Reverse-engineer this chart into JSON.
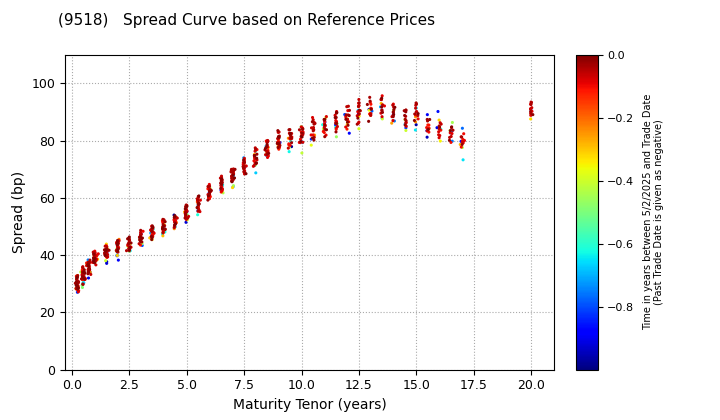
{
  "title": "(9518)   Spread Curve based on Reference Prices",
  "xlabel": "Maturity Tenor (years)",
  "ylabel": "Spread (bp)",
  "colorbar_label_line1": "Time in years between 5/2/2025 and Trade Date",
  "colorbar_label_line2": "(Past Trade Date is given as negative)",
  "cbar_ticks": [
    0.0,
    -0.2,
    -0.4,
    -0.6,
    -0.8
  ],
  "cmap": "jet_r",
  "vmin": -1.0,
  "vmax": 0.0,
  "xlim": [
    -0.3,
    21.0
  ],
  "ylim": [
    0,
    110
  ],
  "xticks": [
    0.0,
    2.5,
    5.0,
    7.5,
    10.0,
    12.5,
    15.0,
    17.5,
    20.0
  ],
  "yticks": [
    0,
    20,
    40,
    60,
    80,
    100
  ],
  "background_color": "#ffffff",
  "grid_color": "#aaaaaa",
  "grid_style": "dotted",
  "marker_size": 5,
  "marker": "o",
  "bond_clusters": [
    {
      "tenor": 0.25,
      "spread": 30,
      "n_recent": 30,
      "n_old": 8,
      "spread_range_recent": 5,
      "spread_range_old": 4
    },
    {
      "tenor": 0.5,
      "spread": 33,
      "n_recent": 30,
      "n_old": 8,
      "spread_range_recent": 5,
      "spread_range_old": 4
    },
    {
      "tenor": 0.75,
      "spread": 36,
      "n_recent": 28,
      "n_old": 8,
      "spread_range_recent": 4,
      "spread_range_old": 4
    },
    {
      "tenor": 1.0,
      "spread": 39,
      "n_recent": 28,
      "n_old": 8,
      "spread_range_recent": 4,
      "spread_range_old": 4
    },
    {
      "tenor": 1.5,
      "spread": 41,
      "n_recent": 25,
      "n_old": 8,
      "spread_range_recent": 4,
      "spread_range_old": 4
    },
    {
      "tenor": 2.0,
      "spread": 43,
      "n_recent": 25,
      "n_old": 8,
      "spread_range_recent": 4,
      "spread_range_old": 4
    },
    {
      "tenor": 2.5,
      "spread": 44,
      "n_recent": 22,
      "n_old": 6,
      "spread_range_recent": 4,
      "spread_range_old": 3
    },
    {
      "tenor": 3.0,
      "spread": 46,
      "n_recent": 22,
      "n_old": 6,
      "spread_range_recent": 4,
      "spread_range_old": 3
    },
    {
      "tenor": 3.5,
      "spread": 48,
      "n_recent": 20,
      "n_old": 6,
      "spread_range_recent": 4,
      "spread_range_old": 3
    },
    {
      "tenor": 4.0,
      "spread": 50,
      "n_recent": 20,
      "n_old": 5,
      "spread_range_recent": 4,
      "spread_range_old": 3
    },
    {
      "tenor": 4.5,
      "spread": 52,
      "n_recent": 20,
      "n_old": 5,
      "spread_range_recent": 4,
      "spread_range_old": 3
    },
    {
      "tenor": 5.0,
      "spread": 55,
      "n_recent": 22,
      "n_old": 6,
      "spread_range_recent": 5,
      "spread_range_old": 4
    },
    {
      "tenor": 5.5,
      "spread": 58,
      "n_recent": 20,
      "n_old": 5,
      "spread_range_recent": 5,
      "spread_range_old": 4
    },
    {
      "tenor": 6.0,
      "spread": 62,
      "n_recent": 20,
      "n_old": 5,
      "spread_range_recent": 5,
      "spread_range_old": 4
    },
    {
      "tenor": 6.5,
      "spread": 65,
      "n_recent": 20,
      "n_old": 5,
      "spread_range_recent": 5,
      "spread_range_old": 4
    },
    {
      "tenor": 7.0,
      "spread": 68,
      "n_recent": 22,
      "n_old": 5,
      "spread_range_recent": 5,
      "spread_range_old": 4
    },
    {
      "tenor": 7.5,
      "spread": 71,
      "n_recent": 22,
      "n_old": 5,
      "spread_range_recent": 5,
      "spread_range_old": 4
    },
    {
      "tenor": 8.0,
      "spread": 74,
      "n_recent": 22,
      "n_old": 5,
      "spread_range_recent": 6,
      "spread_range_old": 4
    },
    {
      "tenor": 8.5,
      "spread": 77,
      "n_recent": 20,
      "n_old": 5,
      "spread_range_recent": 6,
      "spread_range_old": 4
    },
    {
      "tenor": 9.0,
      "spread": 80,
      "n_recent": 20,
      "n_old": 5,
      "spread_range_recent": 6,
      "spread_range_old": 5
    },
    {
      "tenor": 9.5,
      "spread": 81,
      "n_recent": 18,
      "n_old": 5,
      "spread_range_recent": 6,
      "spread_range_old": 5
    },
    {
      "tenor": 10.0,
      "spread": 82,
      "n_recent": 18,
      "n_old": 5,
      "spread_range_recent": 6,
      "spread_range_old": 5
    },
    {
      "tenor": 10.5,
      "spread": 84,
      "n_recent": 16,
      "n_old": 4,
      "spread_range_recent": 7,
      "spread_range_old": 5
    },
    {
      "tenor": 11.0,
      "spread": 85,
      "n_recent": 16,
      "n_old": 4,
      "spread_range_recent": 7,
      "spread_range_old": 5
    },
    {
      "tenor": 11.5,
      "spread": 87,
      "n_recent": 16,
      "n_old": 4,
      "spread_range_recent": 7,
      "spread_range_old": 5
    },
    {
      "tenor": 12.0,
      "spread": 88,
      "n_recent": 16,
      "n_old": 4,
      "spread_range_recent": 7,
      "spread_range_old": 5
    },
    {
      "tenor": 12.5,
      "spread": 90,
      "n_recent": 16,
      "n_old": 4,
      "spread_range_recent": 8,
      "spread_range_old": 5
    },
    {
      "tenor": 13.0,
      "spread": 91,
      "n_recent": 14,
      "n_old": 4,
      "spread_range_recent": 7,
      "spread_range_old": 5
    },
    {
      "tenor": 13.5,
      "spread": 92,
      "n_recent": 12,
      "n_old": 4,
      "spread_range_recent": 7,
      "spread_range_old": 5
    },
    {
      "tenor": 14.0,
      "spread": 90,
      "n_recent": 12,
      "n_old": 4,
      "spread_range_recent": 6,
      "spread_range_old": 5
    },
    {
      "tenor": 14.5,
      "spread": 88,
      "n_recent": 12,
      "n_old": 4,
      "spread_range_recent": 6,
      "spread_range_old": 5
    },
    {
      "tenor": 15.0,
      "spread": 90,
      "n_recent": 12,
      "n_old": 5,
      "spread_range_recent": 6,
      "spread_range_old": 6
    },
    {
      "tenor": 15.5,
      "spread": 85,
      "n_recent": 10,
      "n_old": 5,
      "spread_range_recent": 5,
      "spread_range_old": 5
    },
    {
      "tenor": 16.0,
      "spread": 84,
      "n_recent": 10,
      "n_old": 5,
      "spread_range_recent": 5,
      "spread_range_old": 5
    },
    {
      "tenor": 16.5,
      "spread": 82,
      "n_recent": 10,
      "n_old": 5,
      "spread_range_recent": 5,
      "spread_range_old": 5
    },
    {
      "tenor": 17.0,
      "spread": 80,
      "n_recent": 10,
      "n_old": 5,
      "spread_range_recent": 4,
      "spread_range_old": 4
    },
    {
      "tenor": 20.0,
      "spread": 91,
      "n_recent": 12,
      "n_old": 2,
      "spread_range_recent": 5,
      "spread_range_old": 3
    }
  ]
}
